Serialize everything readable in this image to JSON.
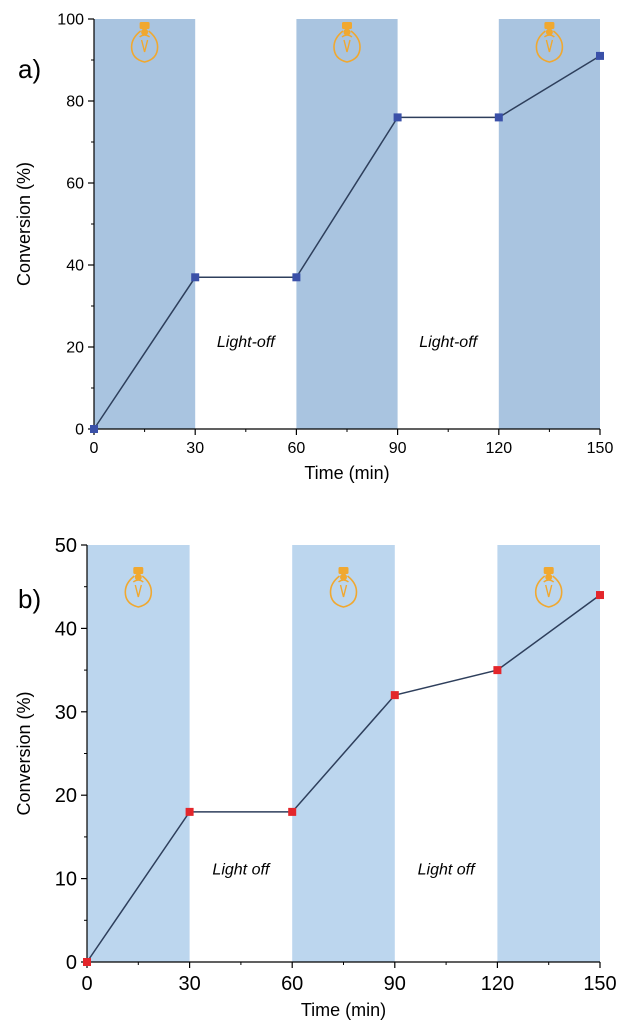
{
  "chart_data": [
    {
      "type": "line",
      "panel_label": "a)",
      "xlabel": "Time (min)",
      "ylabel": "Conversion (%)",
      "xlim": [
        0,
        150
      ],
      "ylim": [
        0,
        100
      ],
      "xticks": [
        0,
        30,
        60,
        90,
        120,
        150
      ],
      "yticks": [
        0,
        20,
        40,
        60,
        80,
        100
      ],
      "grid": false,
      "light_on_intervals": [
        [
          0,
          30
        ],
        [
          60,
          90
        ],
        [
          120,
          150
        ]
      ],
      "light_on_color": "#a9c4e0",
      "annotations": [
        {
          "text": "Light-off",
          "x": 45,
          "y": 20
        },
        {
          "text": "Light-off",
          "x": 105,
          "y": 20
        }
      ],
      "icon": "light-bulb-icon",
      "series": [
        {
          "color": "#3a50a8",
          "line_color": "#2e3f5c",
          "x": [
            0,
            30,
            60,
            90,
            120,
            150
          ],
          "y": [
            0,
            37,
            37,
            76,
            76,
            91
          ]
        }
      ]
    },
    {
      "type": "line",
      "panel_label": "b)",
      "xlabel": "Time (min)",
      "ylabel": "Conversion (%)",
      "xlim": [
        0,
        150
      ],
      "ylim": [
        0,
        50
      ],
      "xticks": [
        0,
        30,
        60,
        90,
        120,
        150
      ],
      "yticks": [
        0,
        10,
        20,
        30,
        40,
        50
      ],
      "grid": false,
      "light_on_intervals": [
        [
          0,
          30
        ],
        [
          60,
          90
        ],
        [
          120,
          150
        ]
      ],
      "light_on_color": "#bcd6ee",
      "annotations": [
        {
          "text": "Light off",
          "x": 45,
          "y": 10.5
        },
        {
          "text": "Light off",
          "x": 105,
          "y": 10.5
        }
      ],
      "icon": "light-bulb-icon",
      "series": [
        {
          "color": "#e3262b",
          "line_color": "#2e3f5c",
          "x": [
            0,
            30,
            60,
            90,
            120,
            150
          ],
          "y": [
            0,
            18,
            18,
            32,
            35,
            44
          ]
        }
      ]
    }
  ]
}
